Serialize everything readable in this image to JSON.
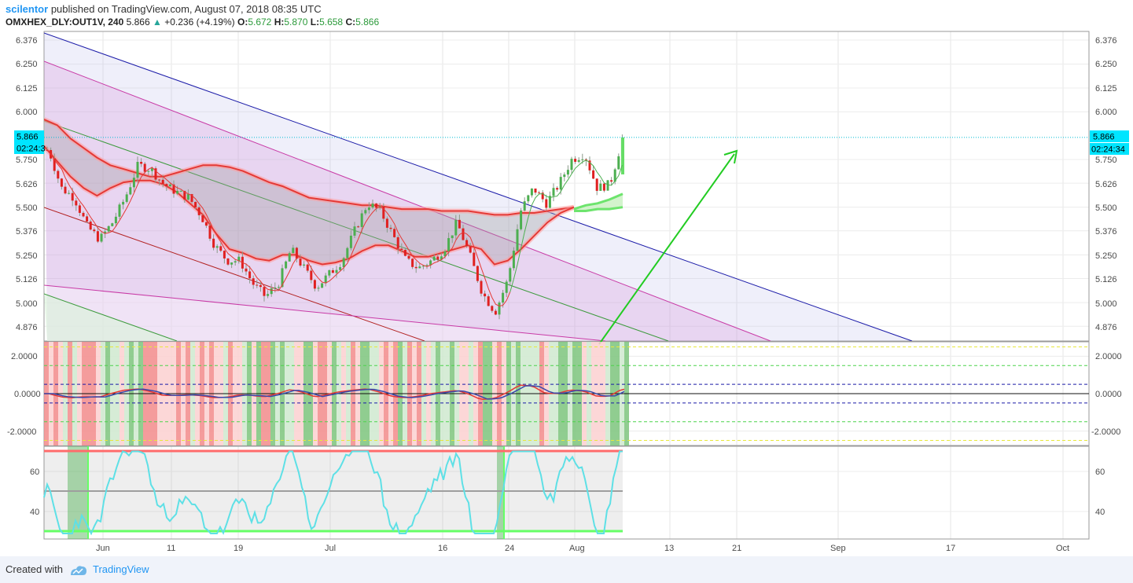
{
  "header": {
    "author": "scilentor",
    "published_text": "published on TradingView.com, August 07, 2018 08:35 UTC",
    "symbol": "OMXHEX_DLY:OUT1V, 240",
    "last": "5.866",
    "change": "+0.236 (+4.19%)",
    "o_label": "O:",
    "o_value": "5.672",
    "h_label": "H:",
    "h_value": "5.870",
    "l_label": "L:",
    "l_value": "5.658",
    "c_label": "C:",
    "c_value": "5.866"
  },
  "price_axis": {
    "ticks": [
      "6.376",
      "6.250",
      "6.125",
      "6.000",
      "5.750",
      "5.626",
      "5.500",
      "5.376",
      "5.250",
      "5.126",
      "5.000",
      "4.876"
    ],
    "current_price": "5.866",
    "countdown_left": "02:24:3",
    "countdown_right": "02:24:34"
  },
  "oscillator_axis": {
    "ticks": [
      "2.0000",
      "0.0000",
      "-2.0000"
    ]
  },
  "rsi_axis": {
    "ticks": [
      "60",
      "40"
    ]
  },
  "time_axis": {
    "ticks": [
      "Jun",
      "11",
      "19",
      "Jul",
      "16",
      "24",
      "Aug",
      "13",
      "21",
      "Sep",
      "17",
      "Oct"
    ]
  },
  "footer": {
    "created_with": "Created with",
    "brand": "TradingView"
  },
  "colors": {
    "up": "#26a69a",
    "down": "#ef5350",
    "accent": "#2196f3",
    "arrow": "#22cc22"
  },
  "chart_data": [
    {
      "type": "line",
      "title": "OMXHEX_DLY:OUT1V, 240",
      "ylim": [
        4.8,
        6.4
      ],
      "x_labels": [
        "Jun",
        "11",
        "19",
        "Jul",
        "16",
        "24",
        "Aug",
        "13",
        "21",
        "Sep",
        "17",
        "Oct"
      ],
      "ohlc_last": {
        "open": 5.672,
        "high": 5.87,
        "low": 5.658,
        "close": 5.866
      },
      "series": [
        {
          "values": [
            5.8,
            5.6,
            5.55,
            5.4,
            5.33,
            5.42,
            5.55,
            5.72,
            5.7,
            5.62,
            5.58,
            5.55,
            5.45,
            5.3,
            5.22,
            5.22,
            5.1,
            5.03,
            5.1,
            5.28,
            5.18,
            5.08,
            5.15,
            5.22,
            5.38,
            5.52,
            5.48,
            5.35,
            5.22,
            5.18,
            5.22,
            5.28,
            5.42,
            5.25,
            5.05,
            4.95,
            5.12,
            5.48,
            5.6,
            5.52,
            5.62,
            5.75,
            5.78,
            5.6,
            5.62,
            5.866
          ]
        }
      ]
    },
    {
      "type": "bar",
      "yticks": [
        "2.0000",
        "0.0000",
        "-2.0000"
      ],
      "ylim": [
        -2.8,
        2.8
      ]
    },
    {
      "type": "line",
      "yticks": [
        "60",
        "40"
      ],
      "ylim": [
        27,
        72
      ]
    }
  ]
}
